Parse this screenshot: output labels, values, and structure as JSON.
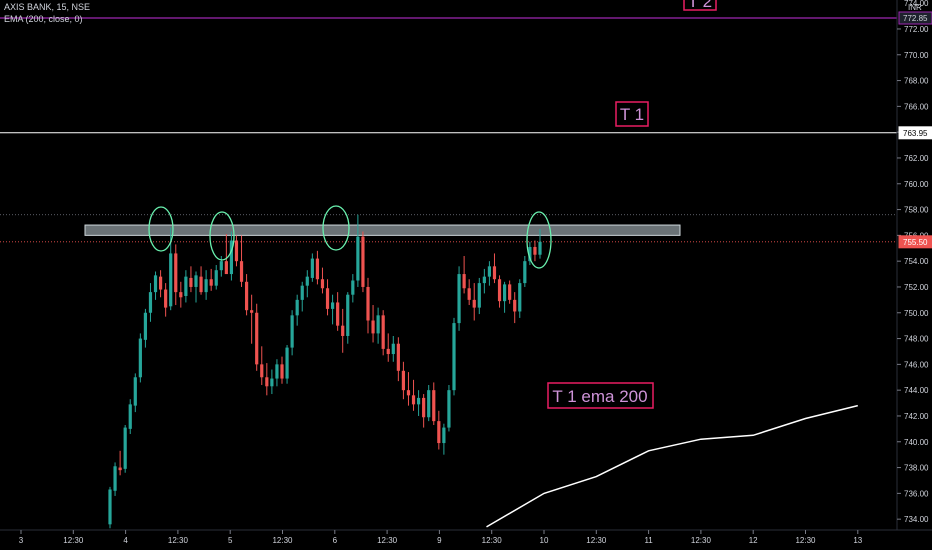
{
  "header": {
    "symbol_line": "AXIS BANK, 15, NSE",
    "indicator_line": "EMA (200, close, 0)"
  },
  "price_axis": {
    "currency": "INR",
    "ticks": [
      "772.00",
      "770.00",
      "768.00",
      "766.00",
      "764.00",
      "762.00",
      "760.00",
      "758.00",
      "756.00",
      "754.00",
      "752.00",
      "750.00",
      "748.00",
      "746.00",
      "744.00",
      "742.00",
      "740.00",
      "738.00",
      "736.00",
      "734.00"
    ],
    "top_partial": "774.00"
  },
  "time_axis": {
    "ticks": [
      "3",
      "12:30",
      "4",
      "12:30",
      "5",
      "12:30",
      "6",
      "12:30",
      "9",
      "12:30",
      "10",
      "12:30",
      "11",
      "12:30",
      "12",
      "12:30",
      "13"
    ]
  },
  "levels": {
    "t2_price": "772.85",
    "t1_price": "763.95",
    "last_price": "755.50"
  },
  "annotations": {
    "t2": "T 2",
    "t1": "T 1",
    "ema": "T 1 ema 200"
  },
  "colors": {
    "background": "#000000",
    "up": "#26a69a",
    "down": "#ef5350",
    "ema": "#ffffff",
    "level_line": "#ffffff",
    "t2_line": "#9c27b0",
    "annotation_border": "#e91e63",
    "annotation_text": "#ce93d8",
    "zone_fill": "#b0bec5",
    "circle": "#69f0ae",
    "last_price_bg": "#ef5350"
  },
  "chart_data": {
    "type": "candlestick",
    "title": "AXIS BANK, 15, NSE",
    "ylim": [
      733.3,
      774.3
    ],
    "x_ticks": [
      "3",
      "12:30",
      "4",
      "12:30",
      "5",
      "12:30",
      "6",
      "12:30",
      "9",
      "12:30",
      "10",
      "12:30",
      "11",
      "12:30",
      "12",
      "12:30",
      "13"
    ],
    "resistance_zone": [
      756.0,
      756.8
    ],
    "horizontal_levels": [
      772.85,
      763.95,
      757.6,
      755.5
    ],
    "ema_200": [
      {
        "day_pos": 4.45,
        "value": 733.4
      },
      {
        "day_pos": 5.0,
        "value": 736.0
      },
      {
        "day_pos": 5.5,
        "value": 737.3
      },
      {
        "day_pos": 6.0,
        "value": 739.3
      },
      {
        "day_pos": 6.5,
        "value": 740.2
      },
      {
        "day_pos": 7.0,
        "value": 740.5
      },
      {
        "day_pos": 7.5,
        "value": 741.8
      },
      {
        "day_pos": 8.0,
        "value": 742.8
      }
    ],
    "candles_ohlc": [
      [
        733.6,
        736.5,
        733.3,
        736.3
      ],
      [
        736.2,
        738.4,
        735.8,
        738.1
      ],
      [
        738.0,
        739.3,
        737.4,
        737.8
      ],
      [
        737.9,
        741.3,
        737.6,
        741.1
      ],
      [
        741.0,
        743.3,
        740.6,
        742.9
      ],
      [
        742.8,
        745.3,
        742.3,
        745.0
      ],
      [
        745.0,
        748.4,
        744.6,
        748.0
      ],
      [
        747.9,
        750.3,
        747.3,
        750.0
      ],
      [
        750.0,
        752.3,
        749.3,
        751.6
      ],
      [
        751.6,
        753.2,
        751.0,
        752.9
      ],
      [
        752.8,
        753.3,
        751.2,
        751.8
      ],
      [
        751.8,
        752.3,
        749.7,
        750.4
      ],
      [
        750.5,
        756.6,
        750.2,
        754.6
      ],
      [
        754.6,
        755.3,
        750.6,
        751.6
      ],
      [
        751.6,
        752.4,
        750.4,
        751.2
      ],
      [
        751.3,
        753.3,
        750.8,
        752.8
      ],
      [
        752.7,
        753.6,
        751.6,
        752.0
      ],
      [
        752.0,
        753.2,
        750.8,
        752.9
      ],
      [
        752.8,
        753.6,
        751.4,
        751.6
      ],
      [
        751.6,
        753.3,
        751.0,
        752.6
      ],
      [
        752.6,
        753.4,
        751.7,
        752.1
      ],
      [
        752.1,
        753.7,
        751.8,
        753.3
      ],
      [
        753.3,
        754.4,
        752.8,
        754.0
      ],
      [
        754.0,
        756.1,
        753.4,
        753.0
      ],
      [
        753.0,
        756.3,
        752.5,
        755.6
      ],
      [
        755.6,
        756.0,
        753.6,
        754.0
      ],
      [
        754.0,
        756.0,
        752.0,
        752.4
      ],
      [
        752.4,
        753.0,
        749.8,
        750.2
      ],
      [
        750.2,
        751.4,
        747.6,
        750.0
      ],
      [
        750.0,
        750.7,
        745.5,
        746.0
      ],
      [
        746.0,
        747.4,
        744.4,
        745.0
      ],
      [
        745.0,
        746.1,
        743.6,
        744.3
      ],
      [
        744.3,
        745.6,
        743.7,
        744.9
      ],
      [
        744.9,
        746.4,
        744.3,
        746.0
      ],
      [
        746.0,
        746.6,
        744.5,
        744.9
      ],
      [
        744.9,
        747.5,
        744.5,
        747.3
      ],
      [
        747.3,
        750.2,
        746.7,
        749.8
      ],
      [
        749.8,
        751.4,
        749.0,
        751.0
      ],
      [
        751.0,
        752.4,
        750.1,
        752.1
      ],
      [
        752.1,
        753.3,
        751.2,
        752.8
      ],
      [
        752.7,
        754.6,
        752.4,
        754.2
      ],
      [
        754.2,
        754.8,
        752.2,
        752.6
      ],
      [
        752.6,
        753.5,
        751.5,
        751.9
      ],
      [
        751.9,
        752.6,
        749.8,
        750.3
      ],
      [
        750.3,
        751.4,
        749.1,
        750.8
      ],
      [
        750.8,
        751.6,
        748.6,
        749.0
      ],
      [
        749.0,
        750.3,
        746.9,
        748.2
      ],
      [
        748.2,
        751.6,
        747.6,
        751.4
      ],
      [
        751.4,
        753.0,
        750.8,
        752.5
      ],
      [
        752.5,
        757.6,
        752.0,
        755.9
      ],
      [
        755.9,
        756.3,
        751.6,
        752.0
      ],
      [
        752.0,
        752.7,
        748.4,
        749.4
      ],
      [
        749.4,
        750.6,
        747.7,
        748.4
      ],
      [
        748.4,
        750.4,
        747.6,
        749.8
      ],
      [
        749.8,
        750.2,
        746.7,
        747.2
      ],
      [
        747.2,
        748.4,
        746.2,
        746.8
      ],
      [
        746.8,
        748.2,
        746.2,
        747.6
      ],
      [
        747.6,
        748.1,
        744.7,
        745.5
      ],
      [
        745.5,
        746.2,
        743.3,
        744.0
      ],
      [
        744.0,
        745.4,
        742.8,
        743.6
      ],
      [
        743.6,
        744.8,
        742.4,
        742.9
      ],
      [
        742.9,
        744.0,
        742.0,
        743.4
      ],
      [
        743.4,
        743.7,
        741.1,
        741.9
      ],
      [
        741.9,
        744.4,
        741.6,
        744.0
      ],
      [
        744.0,
        744.6,
        741.3,
        741.6
      ],
      [
        741.6,
        742.4,
        739.4,
        739.9
      ],
      [
        739.9,
        741.4,
        739.0,
        741.1
      ],
      [
        741.1,
        744.4,
        740.8,
        744.0
      ],
      [
        744.0,
        749.6,
        743.6,
        749.2
      ],
      [
        749.2,
        753.6,
        748.6,
        753.0
      ],
      [
        753.0,
        754.4,
        751.5,
        751.9
      ],
      [
        751.9,
        752.6,
        750.6,
        751.0
      ],
      [
        751.0,
        752.3,
        749.4,
        750.4
      ],
      [
        750.4,
        752.7,
        749.9,
        752.3
      ],
      [
        752.3,
        753.4,
        751.5,
        752.8
      ],
      [
        752.8,
        754.0,
        752.1,
        753.6
      ],
      [
        753.6,
        754.6,
        752.3,
        752.6
      ],
      [
        752.6,
        752.9,
        750.4,
        750.9
      ],
      [
        750.9,
        752.4,
        750.0,
        752.2
      ],
      [
        752.2,
        752.5,
        750.7,
        751.0
      ],
      [
        751.0,
        751.6,
        749.2,
        750.1
      ],
      [
        750.1,
        752.6,
        749.6,
        752.3
      ],
      [
        752.3,
        754.4,
        752.0,
        754.0
      ],
      [
        754.0,
        755.5,
        753.7,
        755.1
      ],
      [
        755.1,
        755.6,
        754.0,
        754.5
      ],
      [
        754.5,
        756.5,
        754.2,
        755.5
      ]
    ]
  }
}
